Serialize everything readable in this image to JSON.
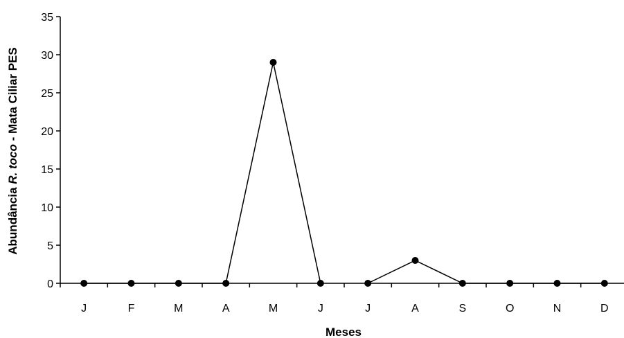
{
  "chart_data": {
    "type": "line",
    "categories": [
      "J",
      "F",
      "M",
      "A",
      "M",
      "J",
      "J",
      "A",
      "S",
      "O",
      "N",
      "D"
    ],
    "series": [
      {
        "segments": [
          {
            "from": 0,
            "values": [
              0,
              0,
              0,
              0,
              29,
              0
            ]
          },
          {
            "from": 6,
            "values": [
              0,
              3,
              0,
              0,
              0,
              0
            ]
          }
        ]
      }
    ],
    "xlabel": "Meses",
    "ylabel": {
      "prefix": "Abundância ",
      "italic": "R. toco",
      "suffix": " - Mata Ciliar PES"
    },
    "ylim": [
      0,
      35
    ],
    "yticks": [
      0,
      5,
      10,
      15,
      20,
      25,
      30,
      35
    ],
    "grid": false,
    "legend": "none",
    "line_color": "#000000",
    "marker_color": "#000000"
  }
}
